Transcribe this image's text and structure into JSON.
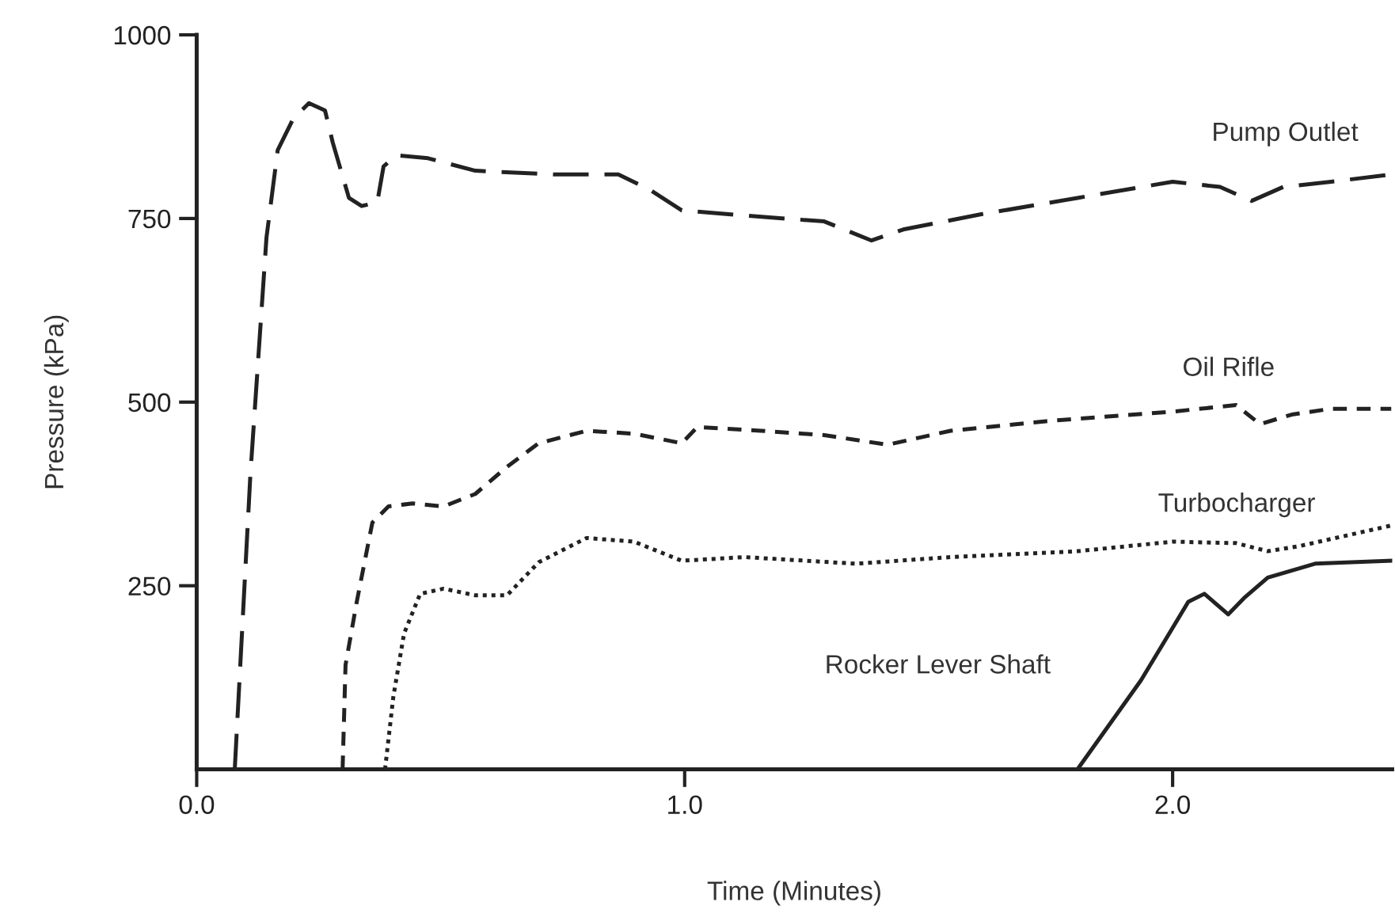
{
  "chart_data": {
    "type": "line",
    "xlabel": "Time (Minutes)",
    "ylabel": "Pressure (kPa)",
    "xlim": [
      0,
      2.45
    ],
    "ylim": [
      0,
      1000
    ],
    "xticks": [
      {
        "value": 0,
        "label": "0.0"
      },
      {
        "value": 1,
        "label": "1.0"
      },
      {
        "value": 2,
        "label": "2.0"
      }
    ],
    "yticks": [
      250,
      500,
      750,
      1000
    ],
    "grid": false,
    "legend": false,
    "series": [
      {
        "name": "Pump Outlet",
        "color": "#222222",
        "line_style": "dashed",
        "x": [
          0.078,
          0.11,
          0.143,
          0.166,
          0.198,
          0.23,
          0.263,
          0.279,
          0.312,
          0.338,
          0.37,
          0.383,
          0.409,
          0.474,
          0.571,
          0.734,
          0.864,
          0.929,
          0.994,
          1.123,
          1.286,
          1.383,
          1.448,
          1.61,
          1.805,
          2.0,
          2.097,
          2.162,
          2.227,
          2.325,
          2.448
        ],
        "values": [
          0,
          401,
          724,
          843,
          886,
          907,
          897,
          853,
          778,
          767,
          772,
          821,
          836,
          832,
          815,
          810,
          810,
          789,
          761,
          754,
          746,
          720,
          735,
          756,
          778,
          800,
          793,
          774,
          793,
          800,
          810
        ]
      },
      {
        "name": "Oil Rifle",
        "color": "#222222",
        "line_style": "dashed",
        "x": [
          0.299,
          0.305,
          0.328,
          0.36,
          0.393,
          0.442,
          0.506,
          0.571,
          0.636,
          0.701,
          0.799,
          0.896,
          0.994,
          1.026,
          1.156,
          1.286,
          1.416,
          1.545,
          1.74,
          2.0,
          2.13,
          2.179,
          2.244,
          2.325,
          2.448
        ],
        "values": [
          0,
          142,
          228,
          336,
          358,
          362,
          358,
          375,
          412,
          444,
          461,
          457,
          444,
          466,
          461,
          455,
          442,
          461,
          474,
          487,
          496,
          470,
          483,
          491,
          491
        ]
      },
      {
        "name": "Turbocharger",
        "color": "#222222",
        "line_style": "dotted",
        "x": [
          0.386,
          0.403,
          0.425,
          0.458,
          0.506,
          0.571,
          0.636,
          0.701,
          0.799,
          0.896,
          0.994,
          1.123,
          1.351,
          1.545,
          1.805,
          2.0,
          2.13,
          2.195,
          2.26,
          2.448
        ],
        "values": [
          0,
          99,
          185,
          239,
          246,
          237,
          237,
          282,
          315,
          310,
          284,
          289,
          280,
          289,
          297,
          310,
          308,
          297,
          304,
          332
        ]
      },
      {
        "name": "Rocker Lever Shaft",
        "color": "#222222",
        "line_style": "solid",
        "x": [
          1.805,
          1.935,
          1.984,
          2.032,
          2.065,
          2.114,
          2.146,
          2.195,
          2.292,
          2.448
        ],
        "values": [
          0,
          121,
          175,
          228,
          239,
          211,
          233,
          261,
          280,
          284
        ]
      }
    ]
  }
}
